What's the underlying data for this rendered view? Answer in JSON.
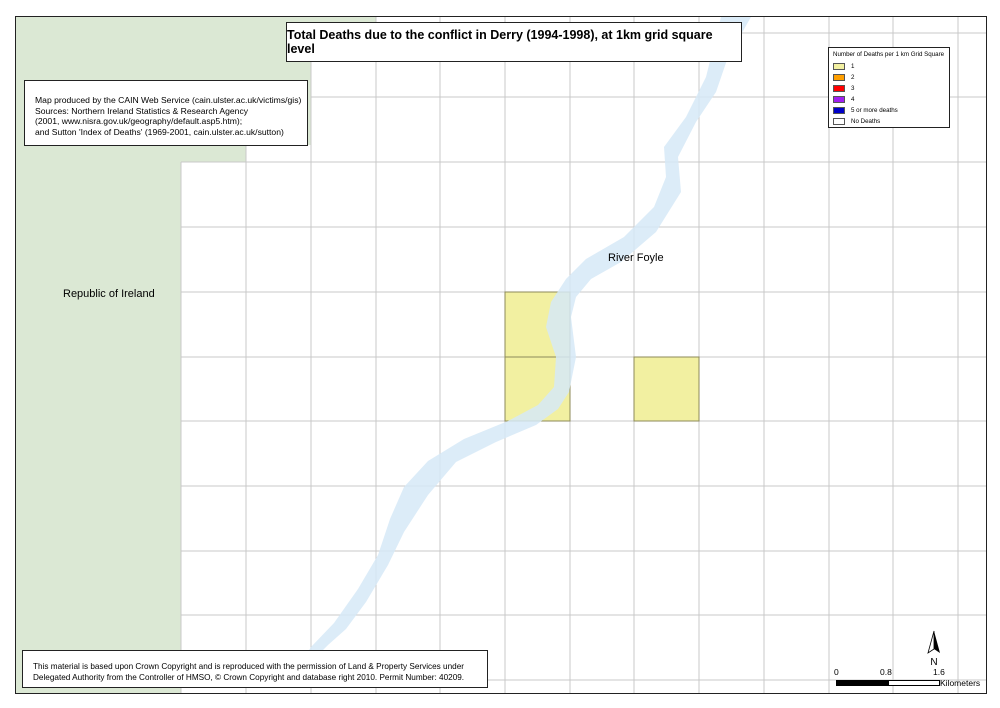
{
  "map": {
    "title": "Total Deaths due to the conflict in Derry (1994-1998), at 1km grid square level",
    "sources": [
      "Map produced by the CAIN Web Service (cain.ulster.ac.uk/victims/gis)",
      "Sources: Northern Ireland Statistics & Research Agency",
      "(2001, www.nisra.gov.uk/geography/default.asp5.htm);",
      "and Sutton 'Index of Deaths' (1969-2001, cain.ulster.ac.uk/sutton)"
    ],
    "copyright": [
      "This material is based upon Crown Copyright and is reproduced with the permission of Land & Property Services under",
      "Delegated Authority from the Controller of HMSO, © Crown Copyright and database right 2010. Permit Number: 40209."
    ],
    "labels": {
      "roi": "Republic of Ireland",
      "river": "River Foyle"
    },
    "legend": {
      "title": "Number of Deaths per 1 km Grid Square",
      "items": [
        {
          "label": "1",
          "color": "#f2f0a1"
        },
        {
          "label": "2",
          "color": "#ff9f00"
        },
        {
          "label": "3",
          "color": "#ff0000"
        },
        {
          "label": "4",
          "color": "#a020f0"
        },
        {
          "label": "5 or more deaths",
          "color": "#0000c8"
        },
        {
          "label": "No Deaths",
          "color": "#ffffff"
        }
      ]
    },
    "north_label": "N",
    "scale": {
      "ticks": [
        "0",
        "0.8",
        "1.6"
      ],
      "units": "Kilometers"
    },
    "colors": {
      "roi_fill": "#dbe8d4",
      "river_fill": "#d6e9f7",
      "grid_line": "#c8c8c8",
      "death_1": "#f2f0a1"
    }
  }
}
